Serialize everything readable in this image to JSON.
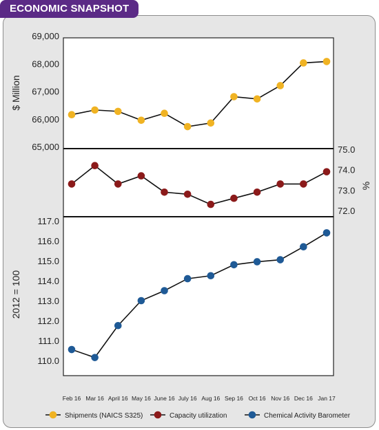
{
  "header": {
    "title": "ECONOMIC SNAPSHOT"
  },
  "chart_data": {
    "type": "line",
    "categories": [
      "Feb 16",
      "Mar 16",
      "April 16",
      "May 16",
      "June 16",
      "July 16",
      "Aug 16",
      "Sep 16",
      "Oct 16",
      "Nov 16",
      "Dec 16",
      "Jan 17"
    ],
    "panels": [
      {
        "ylabel": "$ Million",
        "axis_side": "left",
        "ylim": [
          65000,
          69000
        ],
        "yticks": [
          "65,000",
          "66,000",
          "67,000",
          "68,000",
          "69,000"
        ],
        "ytick_values": [
          65000,
          66000,
          67000,
          68000,
          69000
        ],
        "series": [
          {
            "name": "Shipments (NAICS S325)",
            "color": "#f0b323",
            "values": [
              66150,
              66320,
              66270,
              65950,
              66200,
              65720,
              65850,
              66800,
              66720,
              67200,
              68020,
              68070
            ]
          }
        ]
      },
      {
        "ylabel": "%",
        "axis_side": "right",
        "ylim": [
          71.9,
          75.0
        ],
        "yticks": [
          "75.0",
          "74.0",
          "73.0",
          "72.0"
        ],
        "ytick_values": [
          75.0,
          74.0,
          73.0,
          72.0
        ],
        "series": [
          {
            "name": "Capacity utilization",
            "color": "#8b1a1a",
            "values": [
              73.3,
              74.2,
              73.3,
              73.7,
              72.9,
              72.8,
              72.3,
              72.6,
              72.9,
              73.3,
              73.3,
              73.9
            ]
          }
        ]
      },
      {
        "ylabel": "2012 = 100",
        "axis_side": "left",
        "ylim": [
          109.7,
          117.0
        ],
        "yticks": [
          "117.0",
          "116.0",
          "115.0",
          "114.0",
          "113.0",
          "112.0",
          "111.0",
          "110.0"
        ],
        "ytick_values": [
          117,
          116,
          115,
          114,
          113,
          112,
          111,
          110
        ],
        "series": [
          {
            "name": "Chemical Activity Barometer",
            "color": "#1f5a96",
            "values": [
              110.55,
              110.15,
              111.75,
              113.0,
              113.5,
              114.1,
              114.25,
              114.8,
              114.95,
              115.05,
              115.7,
              116.4
            ]
          }
        ]
      }
    ],
    "legend": [
      {
        "name": "Shipments (NAICS S325)",
        "color": "#f0b323"
      },
      {
        "name": "Capacity utilization",
        "color": "#8b1a1a"
      },
      {
        "name": "Chemical Activity Barometer",
        "color": "#1f5a96"
      }
    ],
    "legend_position": "bottom"
  }
}
